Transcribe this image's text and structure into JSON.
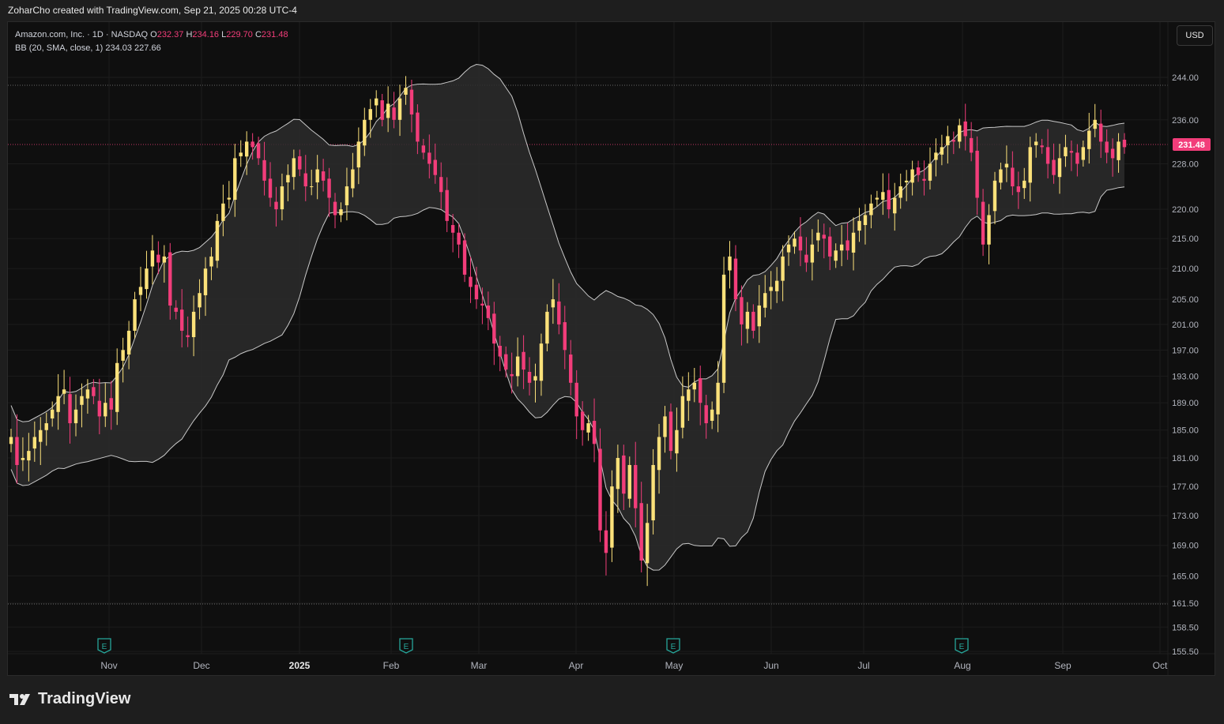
{
  "header": {
    "text": "ZoharCho created with TradingView.com, Sep 21, 2025 00:28 UTC-4"
  },
  "legend": {
    "symbol": "Amazon.com, Inc. · 1D · NASDAQ",
    "o_label": "O",
    "o_value": "232.37",
    "h_label": "H",
    "h_value": "234.16",
    "l_label": "L",
    "l_value": "229.70",
    "c_label": "C",
    "c_value": "231.48",
    "bb_label": "BB (20, SMA, close, 1)",
    "bb_upper": "234.03",
    "bb_lower": "227.66"
  },
  "currency_button": "USD",
  "footer": {
    "brand": "TradingView"
  },
  "colors": {
    "up": "#fbe17a",
    "down": "#f23d7a",
    "band_fill": "#2b2b2b",
    "band_line": "#c9c9c9",
    "last_price_bg": "#f23d7a"
  },
  "icons": [
    "earnings-icon",
    "tradingview-logo-icon"
  ],
  "chart_data": {
    "type": "candlestick",
    "scale": "log",
    "y_ticks": [
      "244.00",
      "236.00",
      "228.00",
      "220.00",
      "215.00",
      "210.00",
      "205.00",
      "201.00",
      "197.00",
      "193.00",
      "189.00",
      "185.00",
      "181.00",
      "177.00",
      "173.00",
      "169.00",
      "165.00",
      "161.50",
      "158.50",
      "155.50"
    ],
    "x_ticks": [
      "Nov",
      "Dec",
      "2025",
      "Feb",
      "Mar",
      "Apr",
      "May",
      "Jun",
      "Jul",
      "Aug",
      "Sep",
      "Oct"
    ],
    "last_price": "231.48",
    "period_high": 242.5,
    "period_low": 161.4,
    "earnings_markers": [
      "E",
      "E",
      "E",
      "E"
    ],
    "closes": [
      184,
      180,
      181,
      182,
      184,
      185,
      186,
      188,
      190,
      191,
      186,
      188,
      190,
      191,
      190,
      187,
      189,
      188,
      195,
      197,
      200,
      205,
      207,
      210,
      213,
      211,
      212,
      204,
      203,
      200,
      199,
      203,
      206,
      210,
      212,
      218,
      221,
      222,
      229,
      230,
      232,
      231,
      229,
      225,
      222,
      220,
      224,
      226,
      229,
      227,
      224,
      224,
      227,
      225,
      222,
      219,
      220,
      224,
      227,
      232,
      236,
      238,
      240,
      236,
      239,
      236,
      240,
      242,
      237,
      232,
      230,
      228,
      226,
      223,
      218,
      216,
      214,
      209,
      207,
      205,
      204,
      202,
      198,
      196,
      194,
      193,
      196,
      194,
      192,
      193,
      198,
      203,
      205,
      201,
      197,
      192,
      187,
      185,
      186,
      183,
      171,
      168,
      177,
      181,
      176,
      180,
      174,
      167,
      172,
      180,
      184,
      187,
      182,
      185,
      190,
      191,
      192,
      189,
      186,
      188,
      192,
      209,
      212,
      205,
      201,
      203,
      200,
      204,
      206,
      207,
      208,
      212,
      214,
      215,
      213,
      211,
      214,
      216,
      215,
      212,
      213,
      214,
      213,
      216,
      218,
      219,
      221,
      222,
      223,
      220,
      222,
      224,
      225,
      227,
      226,
      225,
      228,
      230,
      231,
      233,
      232,
      235,
      233,
      230,
      222,
      214,
      219,
      225,
      227,
      228,
      224,
      223,
      225,
      231,
      232,
      231,
      228,
      226,
      229,
      231,
      230,
      228,
      231,
      234,
      236,
      232,
      230,
      229,
      232,
      231
    ]
  }
}
